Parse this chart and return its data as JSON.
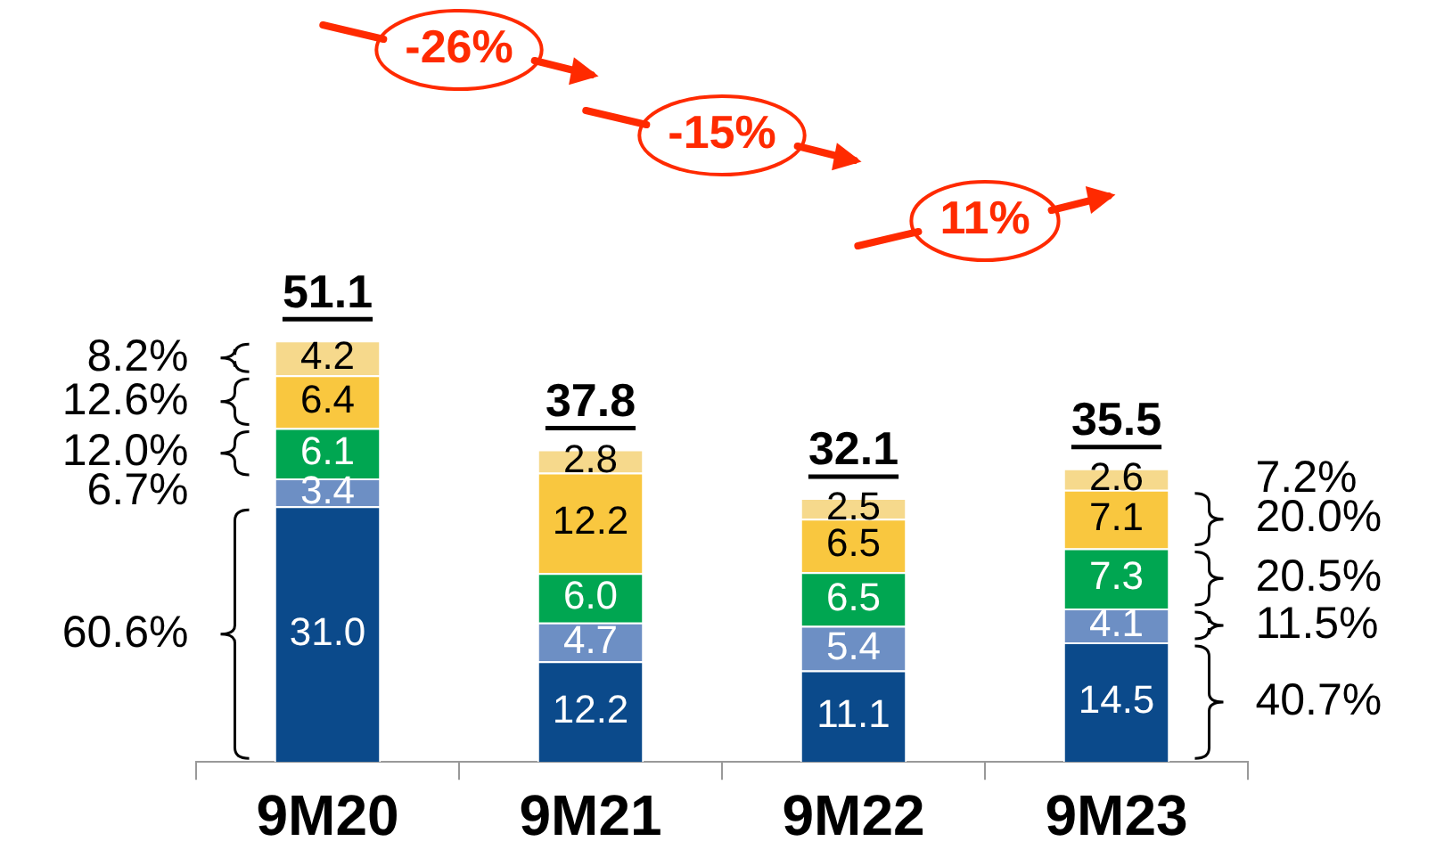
{
  "chart_data": {
    "type": "bar",
    "stacked": true,
    "categories": [
      "9M20",
      "9M21",
      "9M22",
      "9M23"
    ],
    "series": [
      {
        "color": "#0b4a8b",
        "values": [
          31.0,
          12.2,
          11.1,
          14.5
        ],
        "value_labels": [
          "31.0",
          "12.2",
          "11.1",
          "14.5"
        ]
      },
      {
        "color": "#6d8fc4",
        "values": [
          3.4,
          4.7,
          5.4,
          4.1
        ],
        "value_labels": [
          "3.4",
          "4.7",
          "5.4",
          "4.1"
        ]
      },
      {
        "color": "#00a651",
        "values": [
          6.1,
          6.0,
          6.5,
          7.3
        ],
        "value_labels": [
          "6.1",
          "6.0",
          "6.5",
          "7.3"
        ]
      },
      {
        "color": "#f9c73f",
        "values": [
          6.4,
          12.2,
          6.5,
          7.1
        ],
        "value_labels": [
          "6.4",
          "12.2",
          "6.5",
          "7.1"
        ]
      },
      {
        "color": "#f6d98c",
        "values": [
          4.2,
          2.8,
          2.5,
          2.6
        ],
        "value_labels": [
          "4.2",
          "2.8",
          "2.5",
          "2.6"
        ]
      }
    ],
    "tick_labels": "x",
    "grid": false,
    "legend": false,
    "totals": [
      "51.1",
      "37.8",
      "32.1",
      "35.5"
    ],
    "annotations": [
      "-26%",
      "-15%",
      "11%",
      "60.6%",
      "6.7%",
      "12.0%",
      "12.6%",
      "8.2%",
      "40.7%",
      "11.5%",
      "20.5%",
      "20.0%",
      "7.2%"
    ]
  }
}
